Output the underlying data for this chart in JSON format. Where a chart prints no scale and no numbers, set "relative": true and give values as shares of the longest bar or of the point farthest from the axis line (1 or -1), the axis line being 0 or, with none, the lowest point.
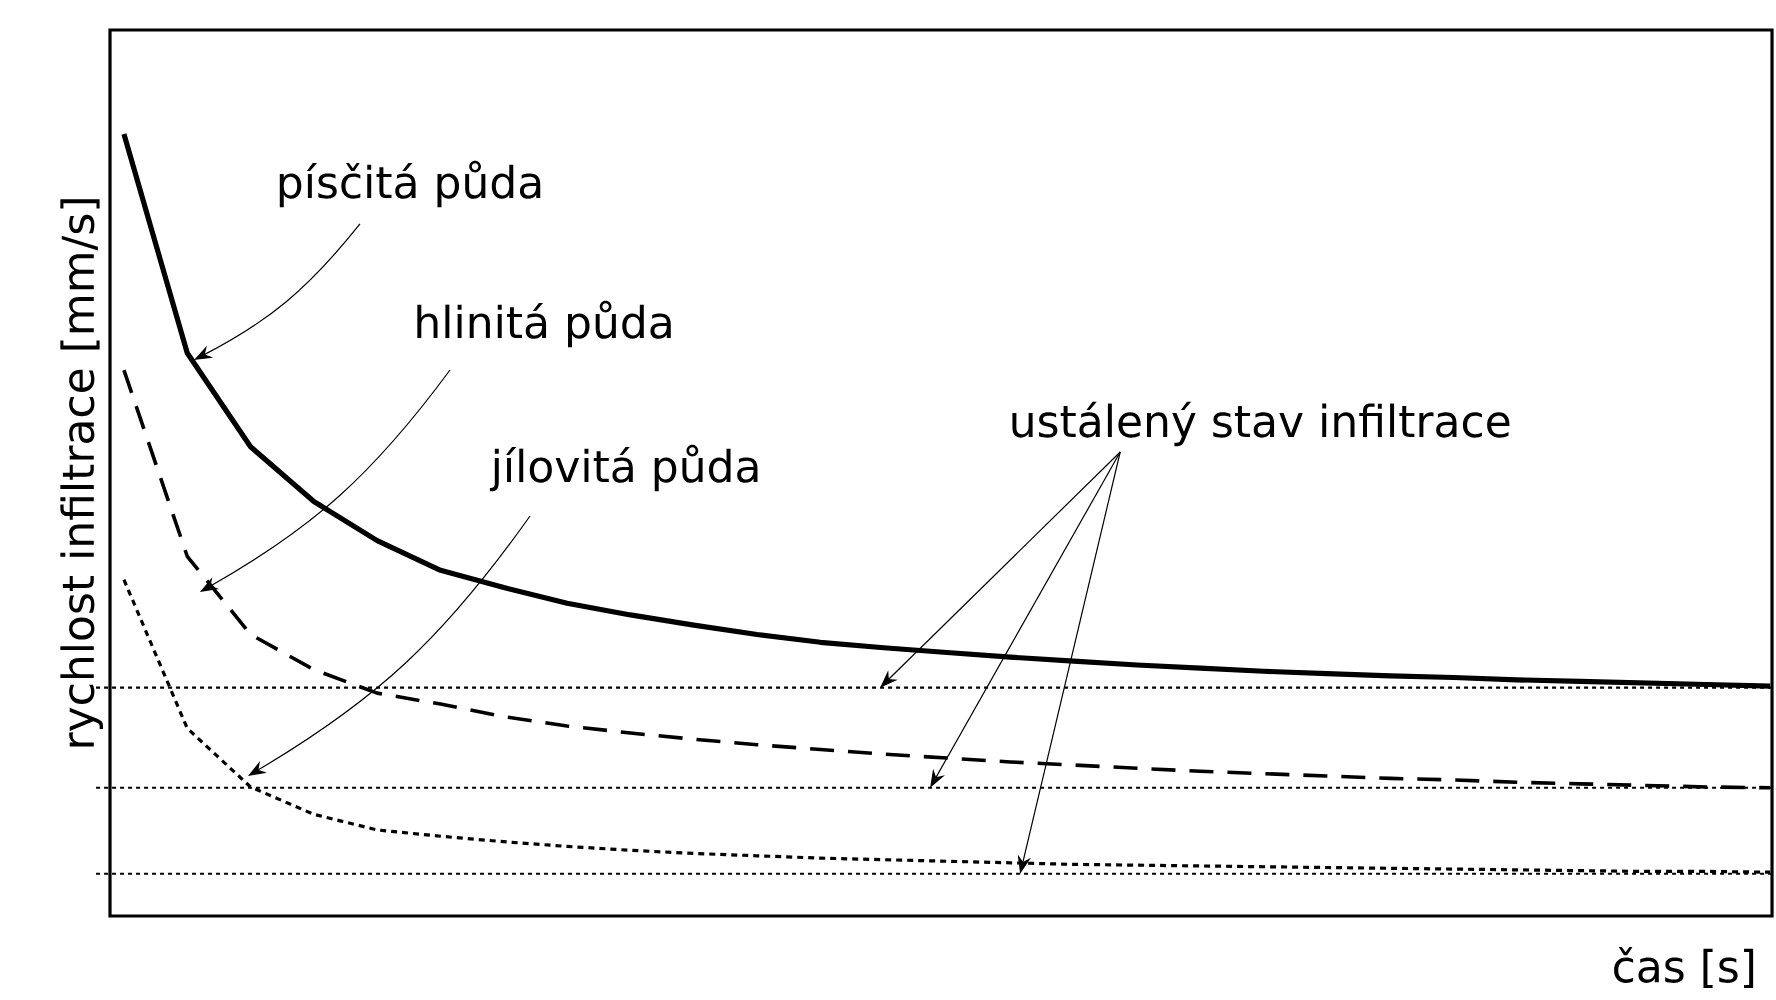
{
  "chart_data": {
    "type": "line",
    "relative": true,
    "xlabel": "čas [s]",
    "ylabel": "rychlost infiltrace [mm/s]",
    "categories": [
      null,
      null,
      null,
      null,
      null,
      null,
      null,
      null,
      null,
      null,
      null,
      null,
      null,
      null,
      null,
      null,
      null,
      null,
      null,
      null,
      null,
      null,
      null,
      null,
      null,
      null,
      null
    ],
    "series": [
      {
        "name": "písčitá půda",
        "color": "#000000",
        "line_style": "solid",
        "values": [
          1.0,
          0.72,
          0.6,
          0.53,
          0.48,
          0.442,
          0.42,
          0.4,
          0.385,
          0.372,
          0.36,
          0.35,
          0.343,
          0.337,
          0.331,
          0.326,
          0.321,
          0.317,
          0.313,
          0.31,
          0.307,
          0.305,
          0.302,
          0.3,
          0.298,
          0.296,
          0.294
        ]
      },
      {
        "name": "hlinitá půda",
        "color": "#000000",
        "line_style": "dashed",
        "values": [
          0.698,
          0.46,
          0.36,
          0.315,
          0.285,
          0.271,
          0.255,
          0.243,
          0.234,
          0.226,
          0.219,
          0.213,
          0.207,
          0.202,
          0.197,
          0.193,
          0.189,
          0.185,
          0.182,
          0.179,
          0.176,
          0.174,
          0.171,
          0.169,
          0.167,
          0.165,
          0.164
        ]
      },
      {
        "name": "jílovitá půda",
        "color": "#000000",
        "line_style": "dotted",
        "values": [
          0.43,
          0.24,
          0.165,
          0.13,
          0.11,
          0.102,
          0.095,
          0.089,
          0.084,
          0.08,
          0.077,
          0.074,
          0.072,
          0.07,
          0.068,
          0.066,
          0.065,
          0.064,
          0.063,
          0.062,
          0.061,
          0.06,
          0.059,
          0.058,
          0.057,
          0.057,
          0.056
        ]
      }
    ],
    "ref_lines": [
      {
        "axis": "y",
        "value": 0.292,
        "color": "#000000",
        "line_style": "dotted"
      },
      {
        "axis": "y",
        "value": 0.164,
        "color": "#000000",
        "line_style": "dotted"
      },
      {
        "axis": "y",
        "value": 0.054,
        "color": "#000000",
        "line_style": "dotted"
      }
    ],
    "annotations": [
      "ustálený stav infiltrace"
    ],
    "marker": "none"
  }
}
